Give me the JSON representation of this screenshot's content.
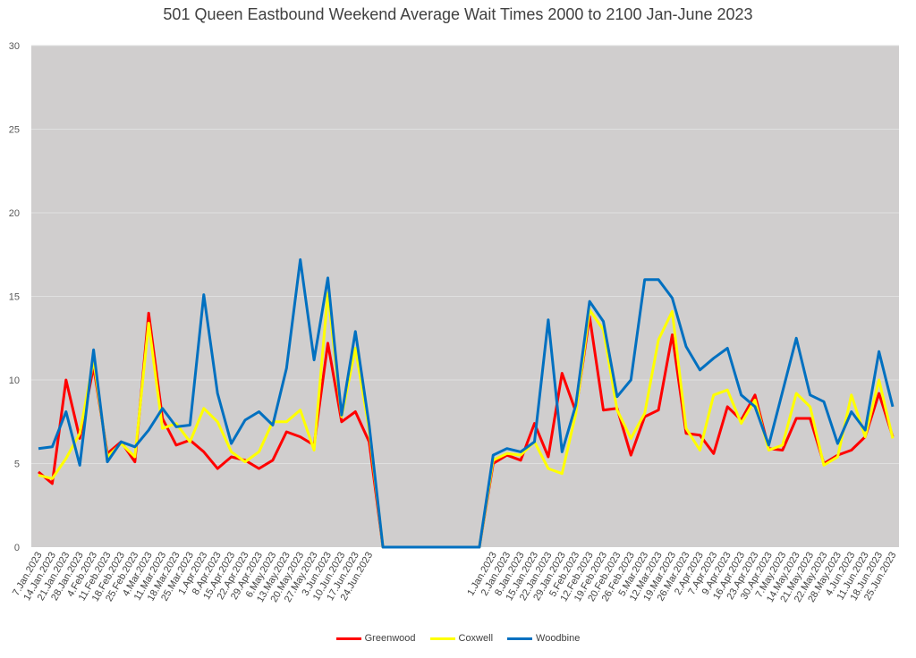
{
  "chart_data": {
    "type": "line",
    "title": "501 Queen Eastbound Weekend Average Wait Times 2000 to 2100 Jan-June 2023",
    "ylim": [
      0,
      30
    ],
    "yticks": [
      "0",
      "5",
      "10",
      "15",
      "20",
      "25",
      "30"
    ],
    "grid": true,
    "legend_position": "bottom",
    "plot_background": "#d0cece",
    "categories": [
      "7.Jan.2023",
      "14.Jan.2023",
      "21.Jan.2023",
      "28.Jan.2023",
      "4.Feb.2023",
      "11.Feb.2023",
      "18.Feb.2023",
      "25.Feb.2023",
      "4.Mar.2023",
      "11.Mar.2023",
      "18.Mar.2023",
      "25.Mar.2023",
      "1.Apr.2023",
      "8.Apr.2023",
      "15.Apr.2023",
      "22.Apr.2023",
      "29.Apr.2023",
      "6.May.2023",
      "13.May.2023",
      "20.May.2023",
      "27.May.2023",
      "3.Jun.2023",
      "10.Jun.2023",
      "17.Jun.2023",
      "24.Jun.2023",
      "",
      "",
      "",
      "",
      "",
      "",
      "",
      "",
      "1.Jan.2023",
      "2.Jan.2023",
      "8.Jan.2023",
      "15.Jan.2023",
      "22.Jan.2023",
      "29.Jan.2023",
      "5.Feb.2023",
      "12.Feb.2023",
      "19.Feb.2023",
      "20.Feb.2023",
      "26.Feb.2023",
      "5.Mar.2023",
      "12.Mar.2023",
      "19.Mar.2023",
      "26.Mar.2023",
      "2.Apr.2023",
      "7.Apr.2023",
      "9.Apr.2023",
      "16.Apr.2023",
      "23.Apr.2023",
      "30.Apr.2023",
      "7.May.2023",
      "14.May.2023",
      "21.May.2023",
      "22.May.2023",
      "28.May.2023",
      "4.Jun.2023",
      "11.Jun.2023",
      "18.Jun.2023",
      "25.Jun.2023"
    ],
    "series": [
      {
        "name": "Greenwood",
        "color": "#ff0000",
        "values": [
          4.5,
          3.8,
          10.0,
          6.5,
          10.8,
          5.6,
          6.3,
          5.1,
          14.0,
          7.7,
          6.1,
          6.4,
          5.7,
          4.7,
          5.4,
          5.2,
          4.7,
          5.2,
          6.9,
          6.6,
          6.1,
          12.2,
          7.5,
          8.1,
          6.3,
          0,
          0,
          0,
          0,
          0,
          0,
          0,
          0,
          5.0,
          5.5,
          5.2,
          7.4,
          5.4,
          10.4,
          8.1,
          13.8,
          8.2,
          8.3,
          5.5,
          7.8,
          8.2,
          12.7,
          6.8,
          6.7,
          5.6,
          8.4,
          7.6,
          9.1,
          5.9,
          5.8,
          7.7,
          7.7,
          5.0,
          5.5,
          5.8,
          6.6,
          9.2,
          6.6
        ]
      },
      {
        "name": "Coxwell",
        "color": "#ffff00",
        "values": [
          4.3,
          4.1,
          5.3,
          6.8,
          11.2,
          5.4,
          6.2,
          5.4,
          13.4,
          7.1,
          7.4,
          6.3,
          8.3,
          7.5,
          5.7,
          5.1,
          5.7,
          7.5,
          7.5,
          8.2,
          5.8,
          15.2,
          7.8,
          11.9,
          7.0,
          0,
          0,
          0,
          0,
          0,
          0,
          0,
          0,
          5.2,
          5.6,
          5.5,
          6.3,
          4.7,
          4.4,
          8.0,
          14.2,
          13.0,
          8.2,
          6.5,
          8.0,
          12.4,
          14.1,
          7.1,
          5.8,
          9.1,
          9.4,
          7.4,
          8.8,
          5.8,
          6.1,
          9.2,
          8.4,
          4.9,
          5.4,
          9.1,
          6.6,
          10.0,
          6.5
        ]
      },
      {
        "name": "Woodbine",
        "color": "#0070c0",
        "values": [
          5.9,
          6.0,
          8.1,
          4.9,
          11.8,
          5.1,
          6.3,
          6.0,
          7.0,
          8.3,
          7.2,
          7.3,
          15.1,
          9.2,
          6.2,
          7.6,
          8.1,
          7.3,
          10.7,
          17.2,
          11.2,
          16.1,
          7.9,
          12.9,
          7.3,
          0,
          0,
          0,
          0,
          0,
          0,
          0,
          0,
          5.5,
          5.9,
          5.7,
          6.3,
          13.6,
          5.7,
          8.5,
          14.7,
          13.5,
          9.0,
          10.0,
          16.0,
          16.0,
          14.9,
          12.0,
          10.6,
          11.3,
          11.9,
          9.1,
          8.4,
          6.1,
          9.3,
          12.5,
          9.1,
          8.7,
          6.2,
          8.1,
          7.0,
          11.7,
          8.4
        ]
      }
    ]
  }
}
